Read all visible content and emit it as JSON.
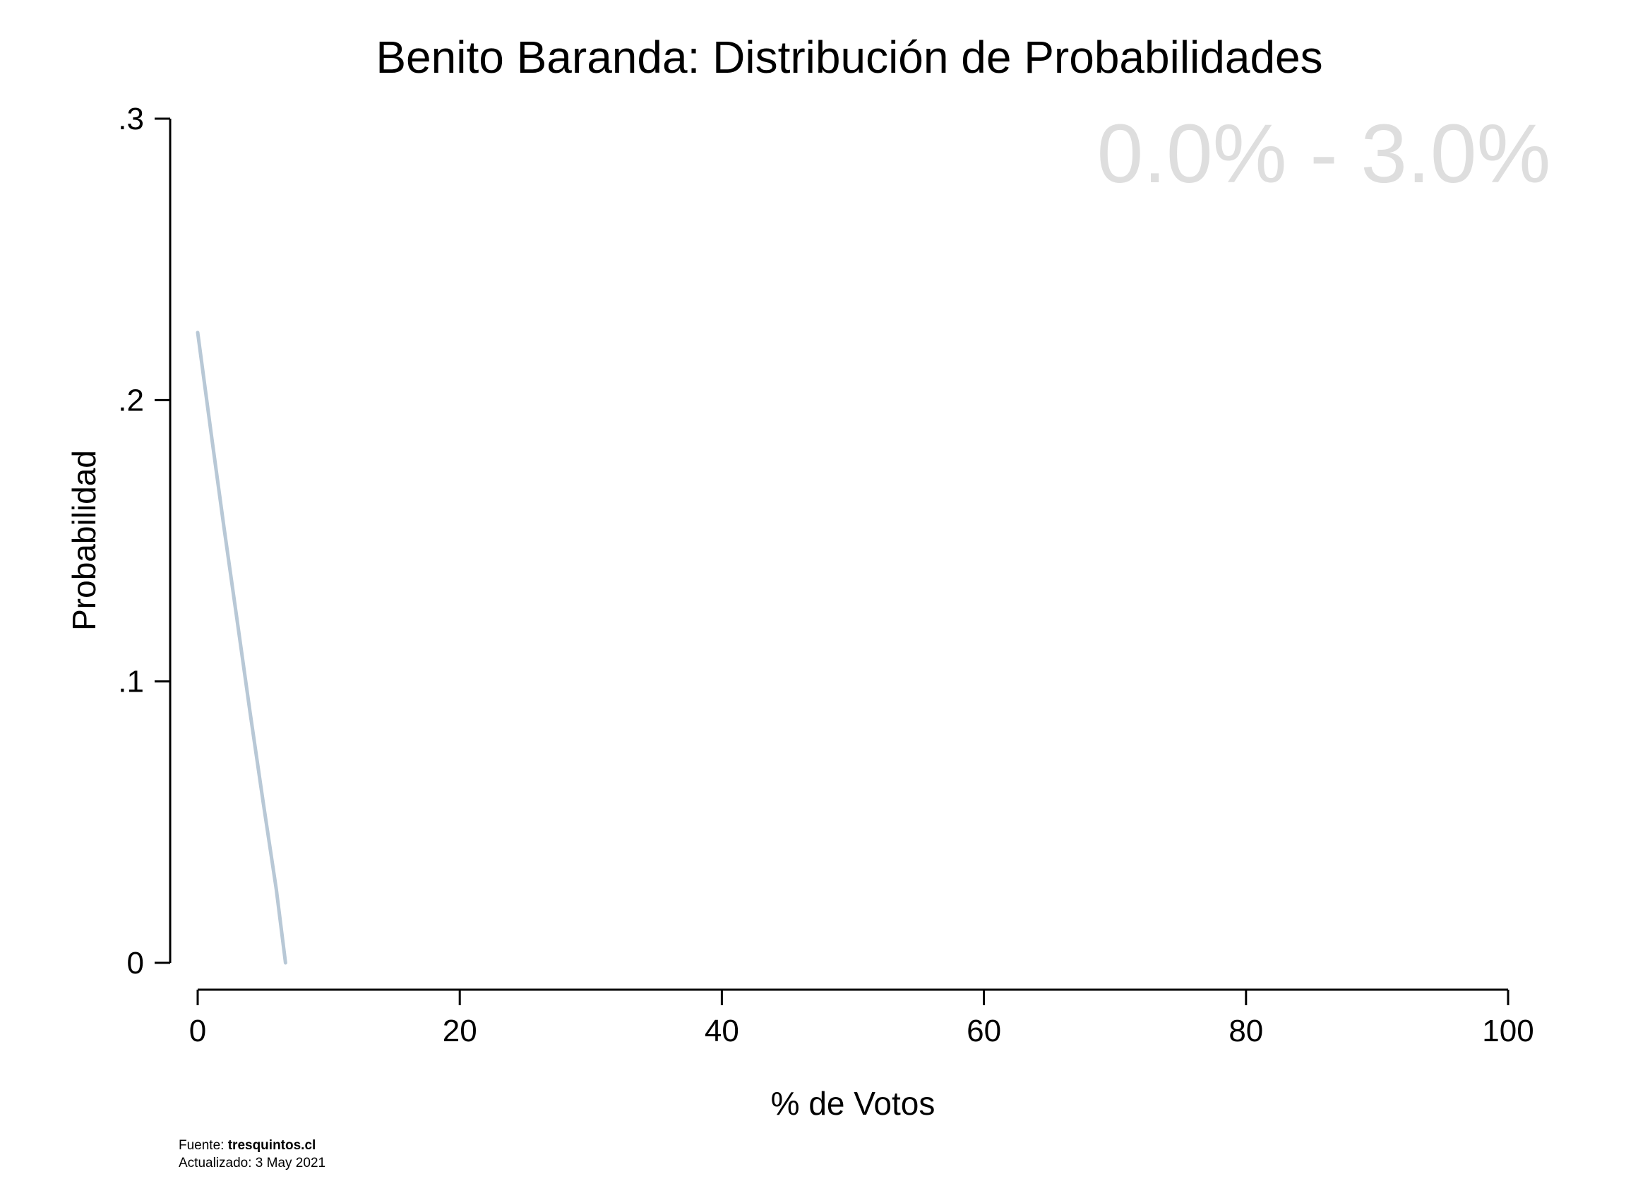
{
  "chart_data": {
    "type": "line",
    "title": "Benito Baranda: Distribución de Probabilidades",
    "xlabel": "% de Votos",
    "ylabel": "Probabilidad",
    "xlim": [
      0,
      100
    ],
    "ylim": [
      0,
      0.3
    ],
    "x_ticks": [
      0,
      20,
      40,
      60,
      80,
      100
    ],
    "x_tick_labels": [
      "0",
      "20",
      "40",
      "60",
      "80",
      "100"
    ],
    "y_ticks": [
      0,
      0.1,
      0.2,
      0.3
    ],
    "y_tick_labels": [
      "0",
      ".1",
      ".2",
      ".3"
    ],
    "grid": false,
    "series": [
      {
        "color": "#b8c8d6",
        "x": [
          0,
          1,
          2,
          3,
          4,
          5,
          6,
          6.7
        ],
        "y": [
          0.224,
          0.189,
          0.155,
          0.122,
          0.089,
          0.057,
          0.026,
          0.0
        ]
      }
    ],
    "annotation": "0.0% - 3.0%"
  },
  "footer": {
    "source_label": "Fuente: ",
    "source_value": "tresquintos.cl",
    "updated": "Actualizado: 3 May 2021"
  }
}
